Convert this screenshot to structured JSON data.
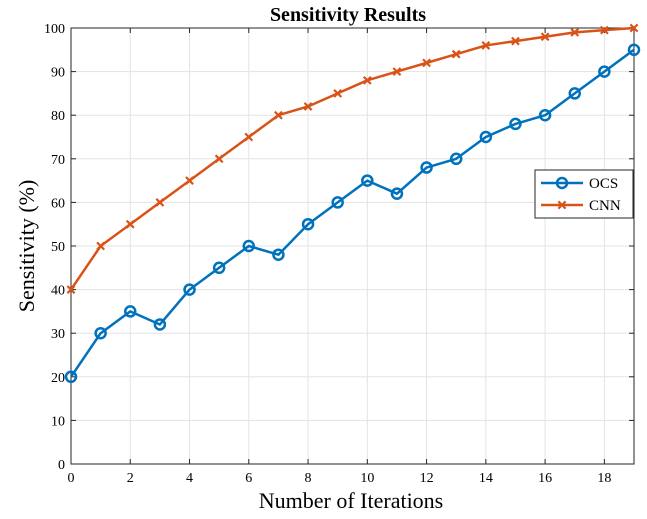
{
  "chart_data": {
    "type": "line",
    "title": "Sensitivity Results",
    "xlabel": "Number of Iterations",
    "ylabel": "Sensitivity (%)",
    "xlim": [
      0,
      19
    ],
    "ylim": [
      0,
      100
    ],
    "x_ticks": [
      0,
      2,
      4,
      6,
      8,
      10,
      12,
      14,
      16,
      18
    ],
    "y_ticks": [
      0,
      10,
      20,
      30,
      40,
      50,
      60,
      70,
      80,
      90,
      100
    ],
    "grid": true,
    "legend_position": "right",
    "x": [
      0,
      1,
      2,
      3,
      4,
      5,
      6,
      7,
      8,
      9,
      10,
      11,
      12,
      13,
      14,
      15,
      16,
      17,
      18,
      19
    ],
    "series": [
      {
        "name": "OCS",
        "color": "#0072BD",
        "marker": "circle",
        "values": [
          20,
          30,
          35,
          32,
          40,
          45,
          50,
          48,
          55,
          60,
          65,
          62,
          68,
          70,
          75,
          78,
          80,
          85,
          90,
          95
        ]
      },
      {
        "name": "CNN",
        "color": "#D95319",
        "marker": "x",
        "values": [
          40,
          50,
          55,
          60,
          65,
          70,
          75,
          80,
          82,
          85,
          88,
          90,
          92,
          94,
          96,
          97,
          98,
          99,
          99.5,
          100
        ]
      }
    ]
  }
}
